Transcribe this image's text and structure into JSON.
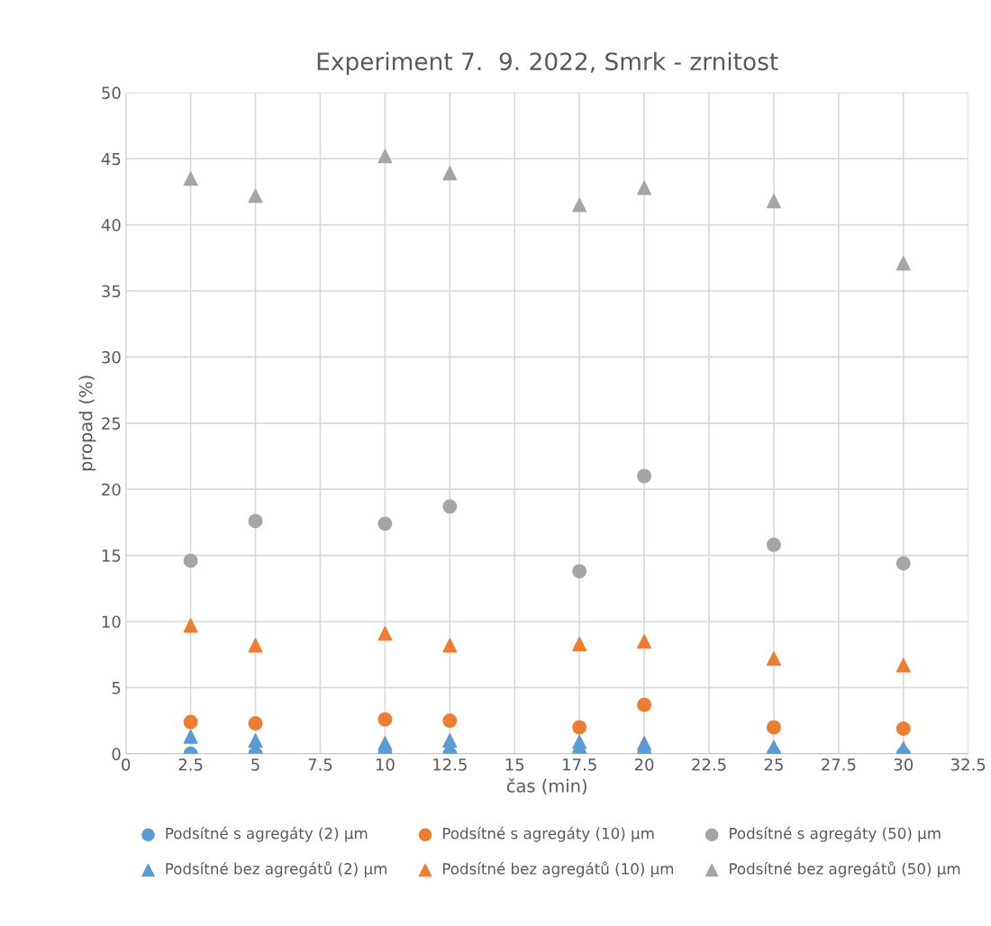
{
  "chart_data": {
    "type": "scatter",
    "title": "Experiment 7.  9. 2022, Smrk - zrnitost",
    "xlabel": "čas (min)",
    "ylabel": "propad (%)",
    "x": [
      2.5,
      5,
      10,
      12.5,
      17.5,
      20,
      25,
      30
    ],
    "series": [
      {
        "name": "Podsítné s agregáty (2) µm",
        "color": "#5b9bd5",
        "marker": "circle",
        "values": [
          0,
          0,
          0,
          0,
          0,
          0,
          0,
          0
        ]
      },
      {
        "name": "Podsítné s agregáty (10) µm",
        "color": "#ed7d31",
        "marker": "circle",
        "values": [
          2.4,
          2.3,
          2.6,
          2.5,
          2.0,
          3.7,
          2.0,
          1.9
        ]
      },
      {
        "name": "Podsítné s agregáty (50) µm",
        "color": "#a5a5a5",
        "marker": "circle",
        "values": [
          14.6,
          17.6,
          17.4,
          18.7,
          13.8,
          21.0,
          15.8,
          14.4
        ]
      },
      {
        "name": "Podsítné bez agregátů (2) µm",
        "color": "#5b9bd5",
        "marker": "triangle",
        "values": [
          1.3,
          1.0,
          0.8,
          1.0,
          0.9,
          0.8,
          0.5,
          0.4
        ]
      },
      {
        "name": "Podsítné bez agregátů (10) µm",
        "color": "#ed7d31",
        "marker": "triangle",
        "values": [
          9.7,
          8.2,
          9.1,
          8.2,
          8.3,
          8.5,
          7.2,
          6.7
        ]
      },
      {
        "name": "Podsítné bez agregátů (50) µm",
        "color": "#a5a5a5",
        "marker": "triangle",
        "values": [
          43.5,
          42.2,
          45.2,
          43.9,
          41.5,
          42.8,
          41.8,
          37.1
        ]
      }
    ],
    "xlim": [
      0,
      32.5
    ],
    "xticks": [
      0,
      2.5,
      5,
      7.5,
      10,
      12.5,
      15,
      17.5,
      20,
      22.5,
      25,
      27.5,
      30,
      32.5
    ],
    "ylim": [
      0,
      50
    ],
    "yticks": [
      0,
      5,
      10,
      15,
      20,
      25,
      30,
      35,
      40,
      45,
      50
    ],
    "grid": true,
    "legend": "bottom"
  }
}
